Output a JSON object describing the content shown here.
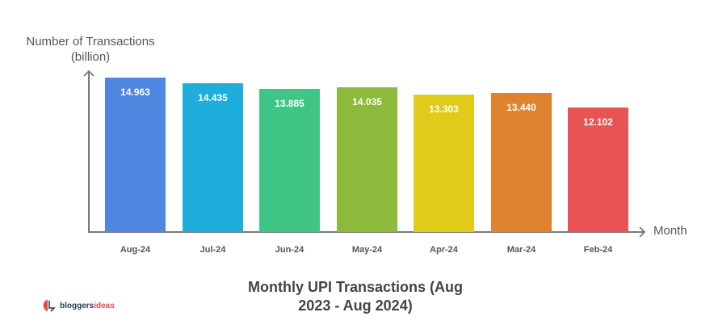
{
  "chart_data": {
    "type": "bar",
    "title": "Monthly UPI Transactions (Aug 2023 - Aug 2024)",
    "title_lines": [
      "Monthly UPI Transactions (Aug",
      "2023 - Aug 2024)"
    ],
    "xlabel": "Month",
    "ylabel": "Number of Transactions (billion)",
    "ylabel_lines": [
      "Number of Transactions",
      "(billion)"
    ],
    "categories": [
      "Aug-24",
      "Jul-24",
      "Jun-24",
      "May-24",
      "Apr-24",
      "Mar-24",
      "Feb-24"
    ],
    "values": [
      14.963,
      14.435,
      13.885,
      14.035,
      13.303,
      13.44,
      12.102
    ],
    "value_labels": [
      "14.963",
      "14.435",
      "13.885",
      "14.035",
      "13.303",
      "13.440",
      "12.102"
    ],
    "colors": [
      "#4F86E0",
      "#1EAEDB",
      "#3FC686",
      "#8DBA3A",
      "#E0CB1B",
      "#E0832F",
      "#E85454"
    ],
    "grid": false,
    "legend": null,
    "y_ticks_shown": false
  },
  "branding": {
    "logo_text_main": "bloggers",
    "logo_text_accent": "ideas"
  }
}
